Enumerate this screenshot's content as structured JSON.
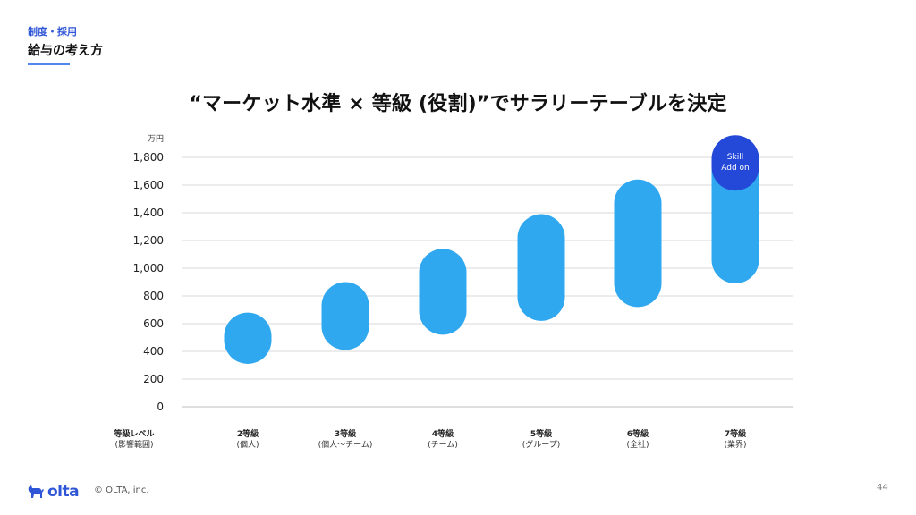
{
  "header": {
    "breadcrumb": "制度・採用",
    "section_title": "給与の考え方"
  },
  "chart_data": {
    "type": "bar",
    "title": "“マーケット水準 × 等級 (役割)”でサラリーテーブルを決定",
    "ylabel": "万円",
    "ylim": [
      0,
      1800
    ],
    "yticks": [
      0,
      200,
      400,
      600,
      800,
      1000,
      1200,
      1400,
      1600,
      1800
    ],
    "ytick_labels": [
      "0",
      "200",
      "400",
      "600",
      "800",
      "1,000",
      "1,200",
      "1,400",
      "1,600",
      "1,800"
    ],
    "grid": true,
    "xaxis_header": {
      "line1": "等級レベル",
      "line2": "(影響範囲)"
    },
    "categories": [
      {
        "line1": "2等級",
        "line2": "(個人)"
      },
      {
        "line1": "3等級",
        "line2": "(個人〜チーム)"
      },
      {
        "line1": "4等級",
        "line2": "(チーム)"
      },
      {
        "line1": "5等級",
        "line2": "(グループ)"
      },
      {
        "line1": "6等級",
        "line2": "(全社)"
      },
      {
        "line1": "7等級",
        "line2": "(業界)"
      }
    ],
    "ranges": [
      {
        "low": 310,
        "high": 680
      },
      {
        "low": 410,
        "high": 900
      },
      {
        "low": 520,
        "high": 1140
      },
      {
        "low": 620,
        "high": 1390
      },
      {
        "low": 720,
        "high": 1640
      },
      {
        "low": 890,
        "high": 1870
      }
    ],
    "bar_color": "#2fa8f0",
    "annotation": {
      "category_index": 5,
      "line1": "Skill",
      "line2": "Add on",
      "low": 1560,
      "high": 1960,
      "color": "#2448d8"
    }
  },
  "footer": {
    "logo_text": "olta",
    "copyright": "© OLTA, inc.",
    "page_number": "44"
  },
  "colors": {
    "accent": "#2f56d6",
    "grid": "#d9d9d9",
    "axis": "#bdbdbd"
  }
}
